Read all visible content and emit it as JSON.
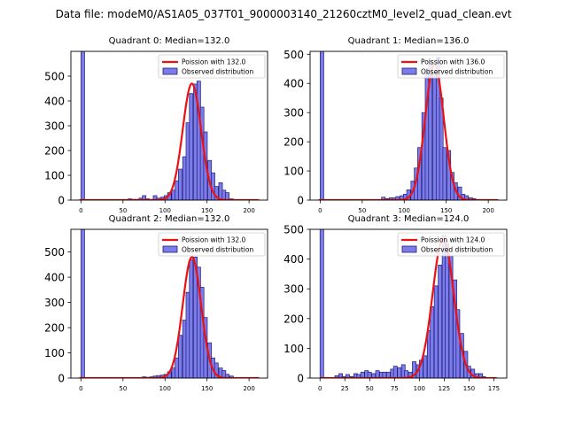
{
  "figure_title": "Data file: modeM0/AS1A05_037T01_9000003140_21260cztM0_level2_quad_clean.evt",
  "colors": {
    "bar_fill": "#7b7bea",
    "bar_edge": "#1f1f7a",
    "poisson_line": "#ee1111"
  },
  "legend_labels": {
    "observed": "Observed distribution"
  },
  "chart_data": [
    {
      "type": "bar",
      "title": "Quadrant 0: Median=132.0",
      "poisson_label": "Poission with 132.0",
      "mean": 132.0,
      "xlim": [
        -12,
        222
      ],
      "ylim": [
        0,
        600
      ],
      "xticks": [
        0,
        50,
        100,
        150,
        200
      ],
      "yticks": [
        0,
        100,
        200,
        300,
        400,
        500
      ],
      "bin_width": 4.3,
      "poisson_peak": 470,
      "bins": [
        [
          0,
          600
        ],
        [
          56,
          5
        ],
        [
          60,
          3
        ],
        [
          64,
          3
        ],
        [
          69,
          8
        ],
        [
          73,
          18
        ],
        [
          77,
          5
        ],
        [
          82,
          3
        ],
        [
          86,
          18
        ],
        [
          90,
          8
        ],
        [
          95,
          12
        ],
        [
          99,
          18
        ],
        [
          103,
          30
        ],
        [
          108,
          40
        ],
        [
          112,
          78
        ],
        [
          116,
          125
        ],
        [
          121,
          175
        ],
        [
          125,
          312
        ],
        [
          129,
          430
        ],
        [
          134,
          468
        ],
        [
          138,
          480
        ],
        [
          142,
          375
        ],
        [
          146,
          275
        ],
        [
          151,
          160
        ],
        [
          155,
          110
        ],
        [
          159,
          55
        ],
        [
          164,
          70
        ],
        [
          168,
          40
        ],
        [
          172,
          30
        ],
        [
          177,
          5
        ]
      ]
    },
    {
      "type": "bar",
      "title": "Quadrant 1: Median=136.0",
      "poisson_label": "Poission with 136.0",
      "mean": 136.0,
      "xlim": [
        -12,
        222
      ],
      "ylim": [
        0,
        510
      ],
      "xticks": [
        0,
        50,
        100,
        150,
        200
      ],
      "yticks": [
        0,
        100,
        200,
        300,
        400,
        500
      ],
      "bin_width": 4.3,
      "poisson_peak": 465,
      "bins": [
        [
          0,
          510
        ],
        [
          73,
          10
        ],
        [
          77,
          5
        ],
        [
          82,
          8
        ],
        [
          86,
          8
        ],
        [
          90,
          12
        ],
        [
          95,
          15
        ],
        [
          99,
          20
        ],
        [
          103,
          35
        ],
        [
          108,
          65
        ],
        [
          112,
          110
        ],
        [
          116,
          180
        ],
        [
          121,
          300
        ],
        [
          125,
          440
        ],
        [
          129,
          480
        ],
        [
          134,
          435
        ],
        [
          138,
          490
        ],
        [
          142,
          350
        ],
        [
          146,
          180
        ],
        [
          151,
          170
        ],
        [
          155,
          95
        ],
        [
          159,
          60
        ],
        [
          164,
          45
        ],
        [
          168,
          20
        ],
        [
          172,
          15
        ],
        [
          177,
          8
        ],
        [
          181,
          5
        ]
      ]
    },
    {
      "type": "bar",
      "title": "Quadrant 2: Median=132.0",
      "poisson_label": "Poission with 132.0",
      "mean": 132.0,
      "xlim": [
        -12,
        222
      ],
      "ylim": [
        0,
        590
      ],
      "xticks": [
        0,
        50,
        100,
        150,
        200
      ],
      "yticks": [
        0,
        100,
        200,
        300,
        400,
        500
      ],
      "bin_width": 4.3,
      "poisson_peak": 480,
      "bins": [
        [
          0,
          590
        ],
        [
          73,
          5
        ],
        [
          77,
          3
        ],
        [
          82,
          5
        ],
        [
          86,
          8
        ],
        [
          90,
          10
        ],
        [
          95,
          12
        ],
        [
          99,
          15
        ],
        [
          103,
          25
        ],
        [
          108,
          40
        ],
        [
          112,
          80
        ],
        [
          116,
          170
        ],
        [
          121,
          230
        ],
        [
          125,
          340
        ],
        [
          129,
          470
        ],
        [
          134,
          480
        ],
        [
          138,
          440
        ],
        [
          142,
          360
        ],
        [
          146,
          240
        ],
        [
          151,
          140
        ],
        [
          155,
          80
        ],
        [
          159,
          60
        ],
        [
          164,
          40
        ],
        [
          168,
          30
        ],
        [
          172,
          15
        ],
        [
          177,
          8
        ]
      ]
    },
    {
      "type": "bar",
      "title": "Quadrant 3: Median=124.0",
      "poisson_label": "Poission with 124.0",
      "mean": 124.0,
      "xlim": [
        -10,
        188
      ],
      "ylim": [
        0,
        500
      ],
      "xticks": [
        0,
        25,
        50,
        75,
        100,
        125,
        150,
        175
      ],
      "yticks": [
        0,
        100,
        200,
        300,
        400,
        500
      ],
      "bin_width": 3.7,
      "poisson_peak": 470,
      "bins": [
        [
          0,
          500
        ],
        [
          15,
          8
        ],
        [
          19,
          15
        ],
        [
          22,
          5
        ],
        [
          26,
          12
        ],
        [
          30,
          5
        ],
        [
          34,
          15
        ],
        [
          37,
          12
        ],
        [
          41,
          20
        ],
        [
          45,
          25
        ],
        [
          48,
          20
        ],
        [
          52,
          15
        ],
        [
          56,
          25
        ],
        [
          60,
          20
        ],
        [
          63,
          20
        ],
        [
          67,
          20
        ],
        [
          71,
          30
        ],
        [
          74,
          40
        ],
        [
          78,
          35
        ],
        [
          82,
          45
        ],
        [
          85,
          25
        ],
        [
          89,
          20
        ],
        [
          93,
          55
        ],
        [
          97,
          45
        ],
        [
          100,
          60
        ],
        [
          104,
          75
        ],
        [
          108,
          160
        ],
        [
          111,
          240
        ],
        [
          115,
          310
        ],
        [
          119,
          380
        ],
        [
          123,
          480
        ],
        [
          126,
          450
        ],
        [
          130,
          410
        ],
        [
          134,
          330
        ],
        [
          137,
          230
        ],
        [
          141,
          150
        ],
        [
          145,
          90
        ],
        [
          148,
          40
        ],
        [
          152,
          30
        ],
        [
          156,
          15
        ],
        [
          160,
          15
        ],
        [
          163,
          5
        ]
      ]
    }
  ]
}
